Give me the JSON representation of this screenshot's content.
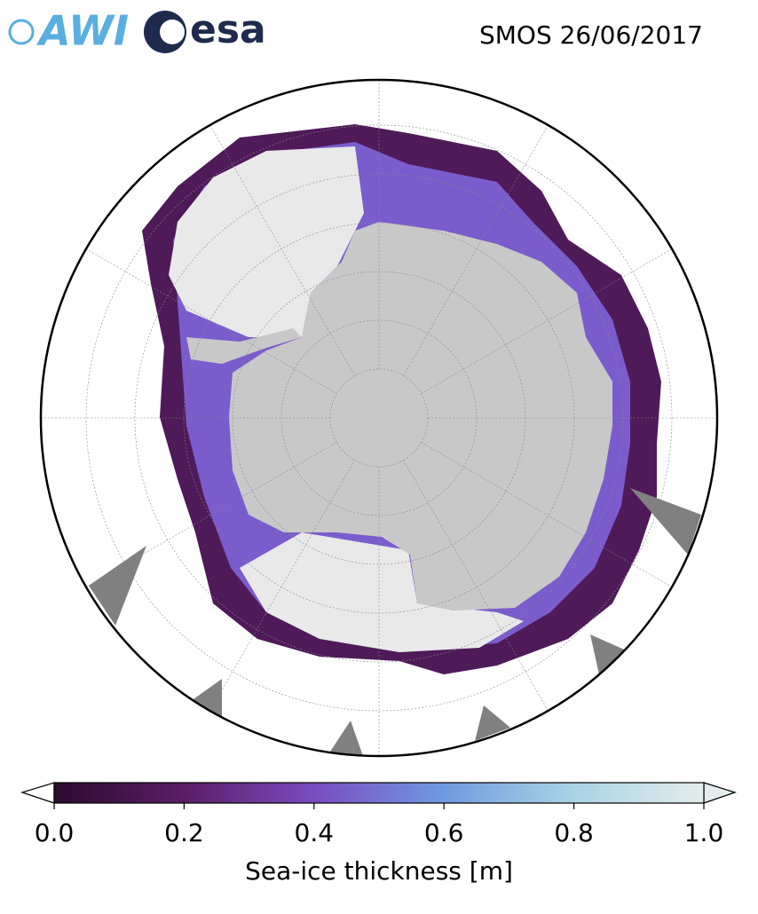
{
  "header": {
    "logos": [
      "AWI",
      "esa"
    ],
    "title": "SMOS 26/06/2017"
  },
  "colorbar": {
    "label": "Sea-ice thickness [m]",
    "lim": [
      0,
      1
    ],
    "ticks": [
      {
        "value": 0,
        "label": "0.0"
      },
      {
        "value": 0.2,
        "label": "0.2"
      },
      {
        "value": 0.4,
        "label": "0.4"
      },
      {
        "value": 0.6,
        "label": "0.6"
      },
      {
        "value": 0.8,
        "label": "0.8"
      },
      {
        "value": 1,
        "label": "1.0"
      }
    ],
    "colors": [
      "#2b0b2e",
      "#5a1d66",
      "#7a4cc0",
      "#6f9ae0",
      "#a9d4e4",
      "#e4ecec"
    ]
  }
}
